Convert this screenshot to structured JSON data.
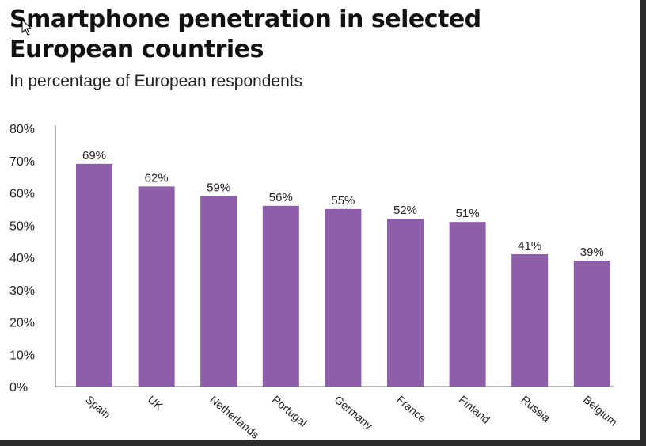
{
  "chart_data": {
    "type": "bar",
    "title": "Smartphone penetration in selected European countries",
    "subtitle": "In percentage of European respondents",
    "categories": [
      "Spain",
      "UK",
      "Netherlands",
      "Portugal",
      "Germany",
      "France",
      "Finland",
      "Russia",
      "Belgium"
    ],
    "values": [
      69,
      62,
      59,
      56,
      55,
      52,
      51,
      41,
      39
    ],
    "value_labels": [
      "69%",
      "62%",
      "59%",
      "56%",
      "55%",
      "52%",
      "51%",
      "41%",
      "39%"
    ],
    "y_ticks": [
      "0%",
      "10%",
      "20%",
      "30%",
      "40%",
      "50%",
      "60%",
      "70%",
      "80%"
    ],
    "ylim": [
      0,
      80
    ],
    "xlabel": "",
    "ylabel": "",
    "grid": false,
    "bar_color": "#8c5fa8"
  }
}
